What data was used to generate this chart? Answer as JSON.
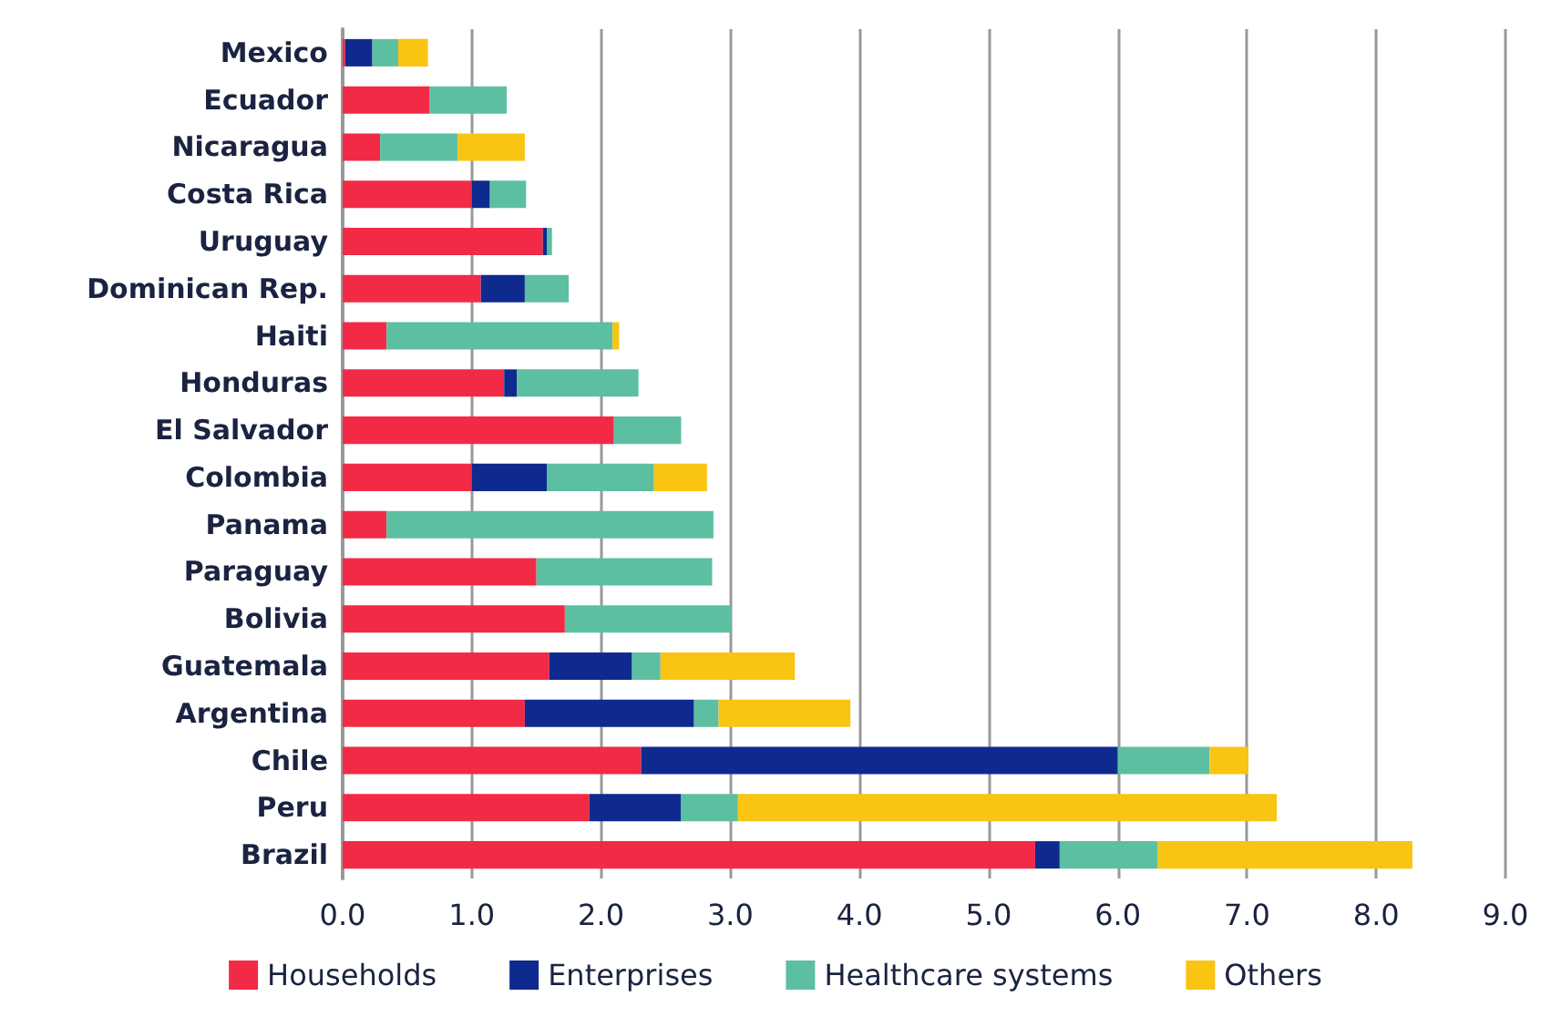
{
  "chart_data": {
    "type": "bar",
    "orientation": "horizontal",
    "stacked": true,
    "categories": [
      "Mexico",
      "Ecuador",
      "Nicaragua",
      "Costa Rica",
      "Uruguay",
      "Dominican Rep.",
      "Haiti",
      "Honduras",
      "El Salvador",
      "Colombia",
      "Panama",
      "Paraguay",
      "Bolivia",
      "Guatemala",
      "Argentina",
      "Chile",
      "Peru",
      "Brazil"
    ],
    "series": [
      {
        "name": "Households",
        "color": "#f22a45",
        "values": [
          0.02,
          0.67,
          0.29,
          1.0,
          1.55,
          1.07,
          0.34,
          1.25,
          2.1,
          1.0,
          0.34,
          1.5,
          1.72,
          1.6,
          1.41,
          2.31,
          1.91,
          5.36
        ]
      },
      {
        "name": "Enterprises",
        "color": "#0f2a8f",
        "values": [
          0.21,
          null,
          null,
          0.14,
          0.03,
          0.34,
          null,
          0.1,
          null,
          0.58,
          null,
          null,
          null,
          0.64,
          1.31,
          3.69,
          0.71,
          0.19
        ]
      },
      {
        "name": "Healthcare systems",
        "color": "#5dbfa2",
        "values": [
          0.2,
          0.6,
          0.6,
          0.28,
          0.04,
          0.34,
          1.75,
          0.94,
          0.52,
          0.83,
          2.53,
          1.36,
          1.29,
          0.22,
          0.19,
          0.71,
          0.44,
          0.76
        ]
      },
      {
        "name": "Others",
        "color": "#f9c412",
        "values": [
          0.23,
          null,
          0.52,
          null,
          null,
          null,
          0.05,
          null,
          null,
          0.41,
          null,
          null,
          null,
          1.04,
          1.02,
          0.3,
          4.17,
          1.97
        ]
      }
    ],
    "xlim": [
      0,
      9
    ],
    "xticks": [
      {
        "value": 0,
        "label": "0.0"
      },
      {
        "value": 1,
        "label": "1.0"
      },
      {
        "value": 2,
        "label": "2.0"
      },
      {
        "value": 3,
        "label": "3.0"
      },
      {
        "value": 4,
        "label": "4.0"
      },
      {
        "value": 5,
        "label": "5.0"
      },
      {
        "value": 6,
        "label": "6.0"
      },
      {
        "value": 7,
        "label": "7.0"
      },
      {
        "value": 8,
        "label": "8.0"
      },
      {
        "value": 9,
        "label": "9.0"
      }
    ],
    "grid": "x",
    "legend": "bottom"
  }
}
